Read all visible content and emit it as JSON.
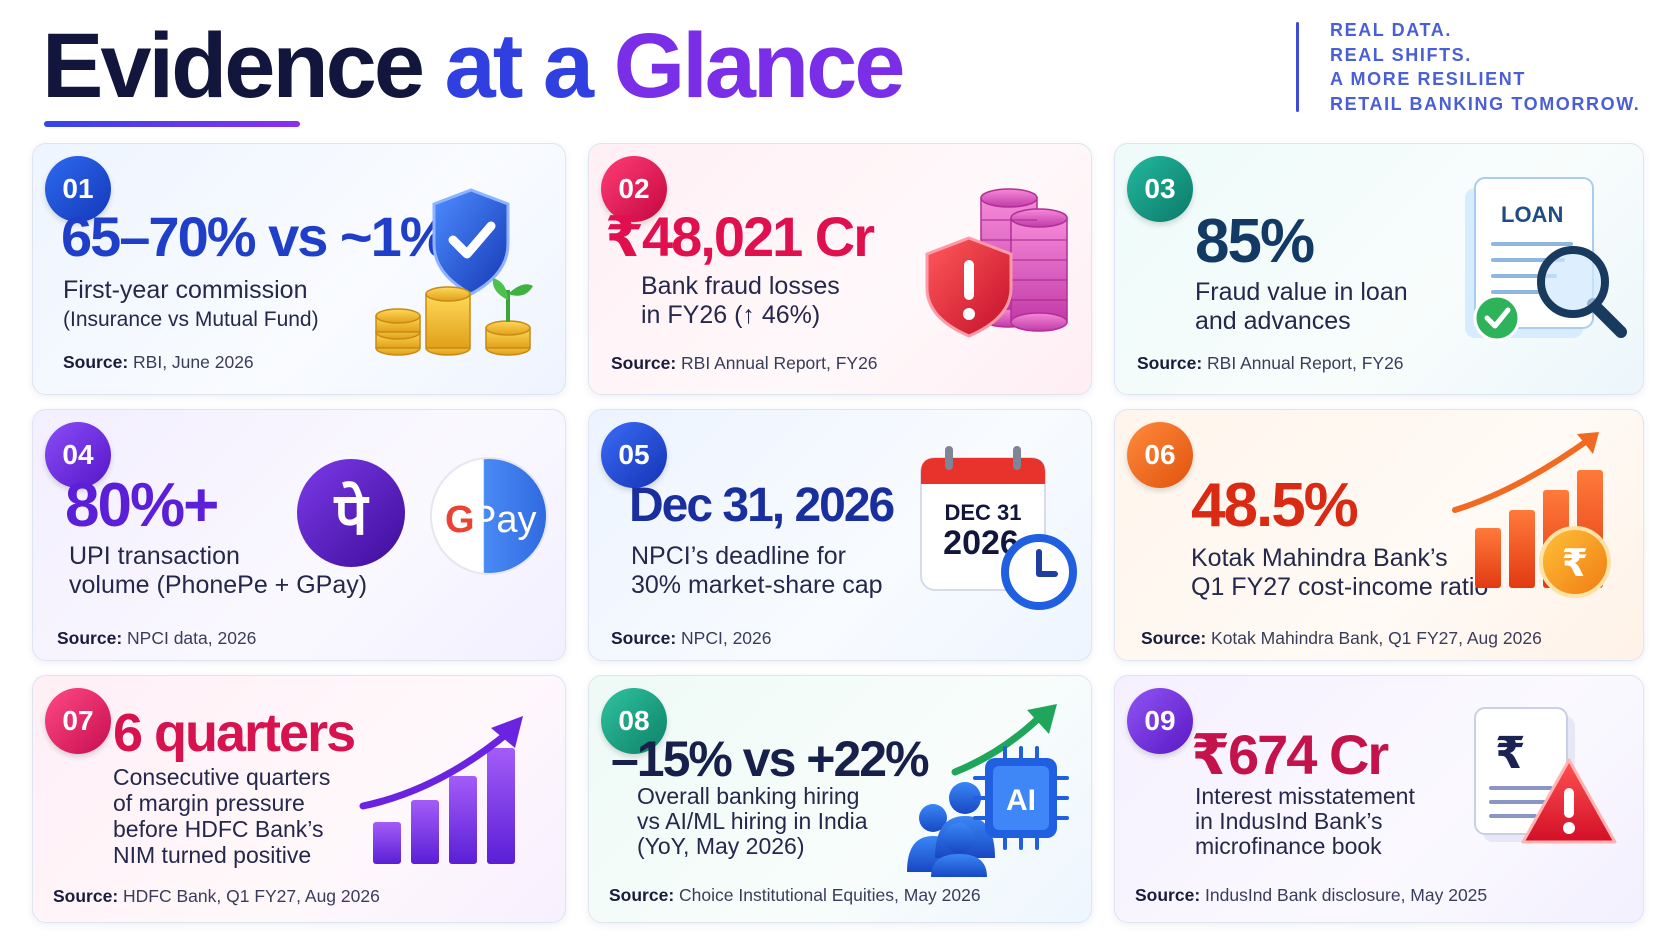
{
  "header": {
    "title_part1": "Evidence",
    "title_part2": "at a",
    "title_part3": "Glance",
    "tagline": [
      "REAL DATA.",
      "REAL SHIFTS.",
      "A MORE RESILIENT",
      "RETAIL BANKING TOMORROW."
    ]
  },
  "cards": [
    {
      "number": "01",
      "stat": "65–70% vs ~1%",
      "desc": [
        "First-year commission",
        "(Insurance vs Mutual Fund)"
      ],
      "source_label": "Source:",
      "source": "RBI, June 2026",
      "accent": "#1f4fd8",
      "icon": "shield-coins-icon"
    },
    {
      "number": "02",
      "stat": "₹48,021 Cr",
      "desc": [
        "Bank fraud losses",
        "in FY26 (↑ 46%)"
      ],
      "source_label": "Source:",
      "source": "RBI Annual Report, FY26",
      "accent": "#e0104f",
      "icon": "alert-shield-coins-icon"
    },
    {
      "number": "03",
      "stat": "85%",
      "desc": [
        "Fraud value in loan",
        "and advances"
      ],
      "source_label": "Source:",
      "source": "RBI Annual Report, FY26",
      "accent": "#0e8f7e",
      "icon": "loan-document-magnifier-icon",
      "icon_text": "LOAN"
    },
    {
      "number": "04",
      "stat": "80%+",
      "desc": [
        "UPI transaction",
        "volume (PhonePe + GPay)"
      ],
      "source_label": "Source:",
      "source": "NPCI data, 2026",
      "accent": "#6a24e0",
      "icon": "phonepe-gpay-icon",
      "icon_text_phonepe": "पे",
      "icon_text_gpay_g": "G",
      "icon_text_gpay": "Pay"
    },
    {
      "number": "05",
      "stat": "Dec 31, 2026",
      "desc": [
        "NPCI’s deadline for",
        "30% market-share cap"
      ],
      "source_label": "Source:",
      "source": "NPCI, 2026",
      "accent": "#1f3fc9",
      "icon": "calendar-clock-icon",
      "icon_text_month": "DEC 31",
      "icon_text_year": "2026"
    },
    {
      "number": "06",
      "stat": "48.5%",
      "desc": [
        "Kotak Mahindra Bank’s",
        "Q1 FY27 cost-income ratio"
      ],
      "source_label": "Source:",
      "source": "Kotak Mahindra Bank, Q1 FY27, Aug 2026",
      "accent": "#e23a12",
      "icon": "bar-chart-rupee-icon",
      "icon_text": "₹"
    },
    {
      "number": "07",
      "stat": "6 quarters",
      "desc": [
        "Consecutive quarters",
        "of margin pressure",
        "before HDFC Bank’s",
        "NIM turned positive"
      ],
      "source_label": "Source:",
      "source": "HDFC Bank, Q1 FY27, Aug 2026",
      "accent": "#e0155a",
      "icon": "rising-bars-icon"
    },
    {
      "number": "08",
      "stat": "–15% vs +22%",
      "desc": [
        "Overall banking hiring",
        "vs AI/ML hiring in India",
        "(YoY, May 2026)"
      ],
      "source_label": "Source:",
      "source": "Choice Institutional Equities, May 2026",
      "accent": "#139a80",
      "icon": "people-ai-chip-icon",
      "icon_text": "AI"
    },
    {
      "number": "09",
      "stat": "₹674 Cr",
      "desc": [
        "Interest misstatement",
        "in IndusInd Bank’s",
        "microfinance book"
      ],
      "source_label": "Source:",
      "source": "IndusInd Bank disclosure, May 2025",
      "accent": "#7328d8",
      "icon": "rupee-document-alert-icon",
      "icon_text": "₹"
    }
  ]
}
